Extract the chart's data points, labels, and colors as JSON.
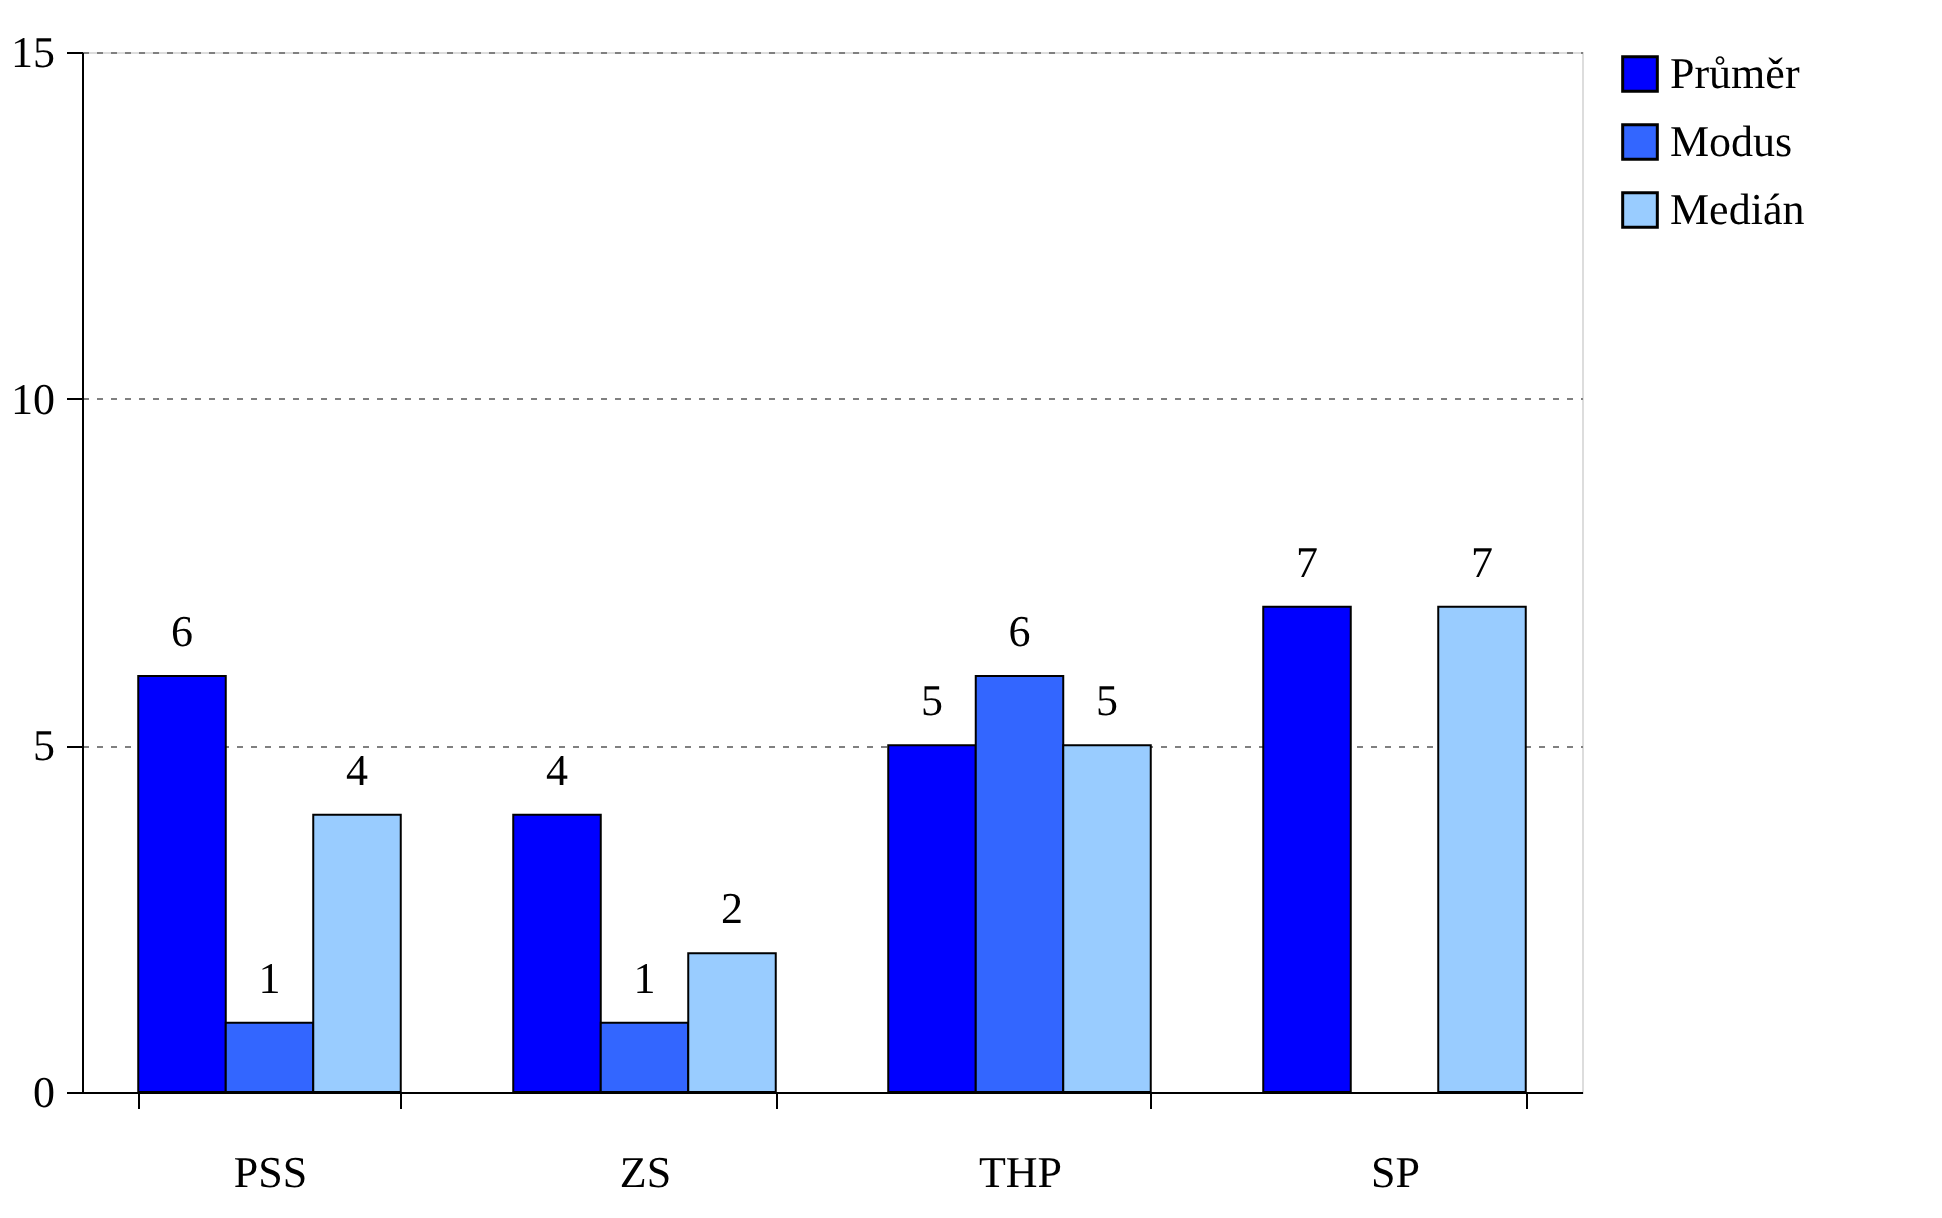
{
  "chart_data": {
    "type": "bar",
    "categories": [
      "PSS",
      "ZS",
      "THP",
      "SP"
    ],
    "series": [
      {
        "name": "Průměr",
        "color": "#0000ff",
        "values": [
          6,
          4,
          5,
          7
        ]
      },
      {
        "name": "Modus",
        "color": "#3366ff",
        "values": [
          1,
          1,
          6,
          null
        ]
      },
      {
        "name": "Medián",
        "color": "#99ccff",
        "values": [
          4,
          2,
          5,
          7
        ]
      }
    ],
    "ylim": [
      0,
      15
    ],
    "yticks": [
      0,
      5,
      10,
      15
    ],
    "grid": "y",
    "legend": "right",
    "data_labels": true
  }
}
